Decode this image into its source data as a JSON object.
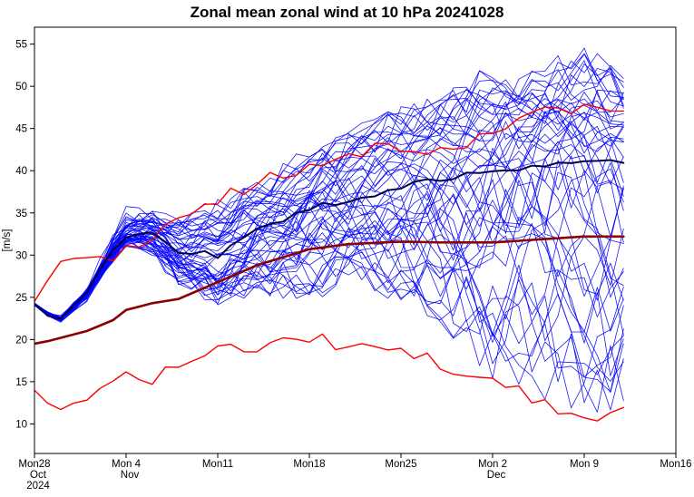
{
  "title": "Zonal mean zonal wind at 10 hPa 20241028",
  "axes": {
    "ylabel": "[m/s]",
    "y_ticks": [
      10,
      15,
      20,
      25,
      30,
      35,
      40,
      45,
      50,
      55
    ],
    "y_domain": [
      6.5,
      57
    ],
    "x_domain_days": [
      0,
      49
    ],
    "x_ticks": [
      {
        "day": 0,
        "lines": [
          "Mon28",
          "Oct",
          "2024"
        ]
      },
      {
        "day": 7,
        "lines": [
          "Mon 4",
          "Nov"
        ]
      },
      {
        "day": 14,
        "lines": [
          "Mon11"
        ]
      },
      {
        "day": 21,
        "lines": [
          "Mon18"
        ]
      },
      {
        "day": 28,
        "lines": [
          "Mon25"
        ]
      },
      {
        "day": 35,
        "lines": [
          "Mon 2",
          "Dec"
        ]
      },
      {
        "day": 42,
        "lines": [
          "Mon 9"
        ]
      },
      {
        "day": 49,
        "lines": [
          "Mon16"
        ]
      }
    ]
  },
  "colors": {
    "frame": "#000000",
    "tick_text": "#000000",
    "background": "#ffffff"
  },
  "chart_data": {
    "type": "line",
    "title": "Zonal mean zonal wind at 10 hPa 20241028",
    "xlabel": "",
    "ylabel": "[m/s]",
    "ylim": [
      6.5,
      57
    ],
    "x_unit": "forecast day from 2024-10-28, weekly ticks Mon28 Oct to Mon16 Dec",
    "grid": false,
    "legend": "none",
    "series": [
      {
        "name": "climatology_max",
        "color": "#ff0000",
        "width": 1.4,
        "noise": 0.8,
        "days": [
          0,
          1,
          2,
          4,
          6,
          7,
          9,
          11,
          14,
          17,
          21,
          24,
          28,
          31,
          35,
          38,
          42,
          45
        ],
        "values": [
          24.5,
          27.0,
          29.3,
          29.8,
          29.7,
          30.5,
          32.0,
          34.0,
          36.5,
          38.5,
          40.5,
          42.0,
          43.0,
          42.5,
          44.5,
          46.5,
          47.8,
          47.5
        ]
      },
      {
        "name": "climatology_min",
        "color": "#ff0000",
        "width": 1.4,
        "noise": 0.8,
        "days": [
          0,
          1,
          2,
          4,
          6,
          7,
          9,
          11,
          14,
          17,
          21,
          24,
          28,
          31,
          35,
          38,
          42,
          45
        ],
        "values": [
          14.0,
          12.5,
          11.5,
          13.0,
          15.8,
          15.5,
          15.2,
          17.5,
          18.8,
          19.0,
          20.3,
          19.0,
          19.3,
          17.0,
          15.2,
          13.0,
          10.5,
          11.5
        ]
      },
      {
        "name": "climatology_mean",
        "color": "#8b0000",
        "width": 2.6,
        "noise": 0,
        "days": [
          0,
          1,
          2,
          4,
          6,
          7,
          9,
          11,
          14,
          17,
          21,
          24,
          28,
          31,
          35,
          38,
          42,
          45
        ],
        "values": [
          19.5,
          19.8,
          20.2,
          21.0,
          22.3,
          23.5,
          24.3,
          24.8,
          26.8,
          28.8,
          30.7,
          31.3,
          31.6,
          31.5,
          31.5,
          31.8,
          32.2,
          32.2
        ]
      },
      {
        "name": "ensemble_mean",
        "color": "#00004c",
        "width": 2.0,
        "noise": 0.35,
        "days": [
          0,
          1,
          2,
          4,
          6,
          7,
          9,
          11,
          14,
          17,
          21,
          24,
          28,
          31,
          35,
          38,
          42,
          45
        ],
        "values": [
          24.2,
          22.8,
          22.5,
          25.5,
          30.5,
          32.3,
          32.8,
          30.5,
          30.0,
          33.0,
          35.5,
          36.5,
          38.0,
          39.0,
          40.0,
          40.5,
          41.0,
          41.0
        ]
      }
    ],
    "ensemble": {
      "description": "blue spaghetti of ensemble members, tight at start, spreading with lead time",
      "member_count": 50,
      "seed": 42,
      "end_day": 45,
      "color": "#0000ff",
      "width": 0.8,
      "spread_days": [
        0,
        2,
        4,
        7,
        9,
        11,
        14,
        17,
        21,
        24,
        28,
        31,
        35,
        38,
        42,
        45
      ],
      "spread_min": [
        23.9,
        22.1,
        24.8,
        31.5,
        30.0,
        27.0,
        24.5,
        26.0,
        25.0,
        27.0,
        25.0,
        22.0,
        16.0,
        14.0,
        12.0,
        12.0
      ],
      "spread_max": [
        24.5,
        22.9,
        26.2,
        35.5,
        35.5,
        34.5,
        36.0,
        38.0,
        42.5,
        44.5,
        47.0,
        49.0,
        52.0,
        53.0,
        54.0,
        52.0
      ]
    }
  }
}
